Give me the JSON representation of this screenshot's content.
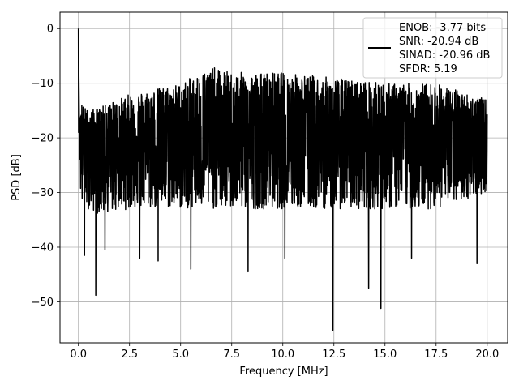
{
  "chart_data": {
    "type": "line",
    "xlabel": "Frequency [MHz]",
    "ylabel": "PSD [dB]",
    "xlim": [
      -0.9,
      21.0
    ],
    "ylim": [
      -57.5,
      3.0
    ],
    "xticks": [
      0.0,
      2.5,
      5.0,
      7.5,
      10.0,
      12.5,
      15.0,
      17.5,
      20.0
    ],
    "xtick_labels": [
      "0.0",
      "2.5",
      "5.0",
      "7.5",
      "10.0",
      "12.5",
      "15.0",
      "17.5",
      "20.0"
    ],
    "yticks": [
      0,
      -10,
      -20,
      -30,
      -40,
      -50
    ],
    "ytick_labels": [
      "0",
      "−10",
      "−20",
      "−30",
      "−40",
      "−50"
    ],
    "grid": true,
    "legend_placement": "top-right",
    "series": [
      {
        "color": "#000000",
        "legend_lines": [
          "ENOB: -3.77 bits",
          "SNR: -20.94 dB",
          "SINAD: -20.96 dB",
          "SFDR: 5.19"
        ],
        "x_start": 0.0,
        "x_end": 20.0,
        "envelope": {
          "x": [
            0.0,
            0.05,
            0.1,
            0.2,
            0.5,
            1.0,
            2.5,
            5.0,
            6.5,
            7.5,
            10.0,
            12.5,
            15.0,
            17.5,
            20.0
          ],
          "upper": [
            0.0,
            -19.0,
            -12.0,
            -14.0,
            -15.0,
            -14.5,
            -12.0,
            -10.0,
            -7.0,
            -8.0,
            -8.0,
            -9.0,
            -10.0,
            -10.0,
            -13.0
          ],
          "center": [
            0.0,
            -19.0,
            -20.5,
            -21.0,
            -21.0,
            -21.0,
            -20.5,
            -20.0,
            -19.5,
            -19.5,
            -20.0,
            -20.0,
            -20.0,
            -20.0,
            -20.5
          ],
          "lower": [
            0.0,
            -19.0,
            -30.0,
            -33.0,
            -33.0,
            -34.0,
            -33.0,
            -33.0,
            -33.0,
            -33.0,
            -33.0,
            -33.0,
            -33.0,
            -33.0,
            -30.0
          ]
        },
        "notable_dips": [
          {
            "x": 0.3,
            "y": -41.5
          },
          {
            "x": 0.85,
            "y": -48.8
          },
          {
            "x": 1.3,
            "y": -40.5
          },
          {
            "x": 3.0,
            "y": -42.0
          },
          {
            "x": 3.9,
            "y": -42.5
          },
          {
            "x": 5.5,
            "y": -44.0
          },
          {
            "x": 8.3,
            "y": -44.5
          },
          {
            "x": 10.1,
            "y": -42.0
          },
          {
            "x": 12.45,
            "y": -55.2
          },
          {
            "x": 14.2,
            "y": -47.5
          },
          {
            "x": 14.8,
            "y": -51.2
          },
          {
            "x": 16.3,
            "y": -42.0
          },
          {
            "x": 19.5,
            "y": -43.0
          }
        ]
      }
    ]
  }
}
